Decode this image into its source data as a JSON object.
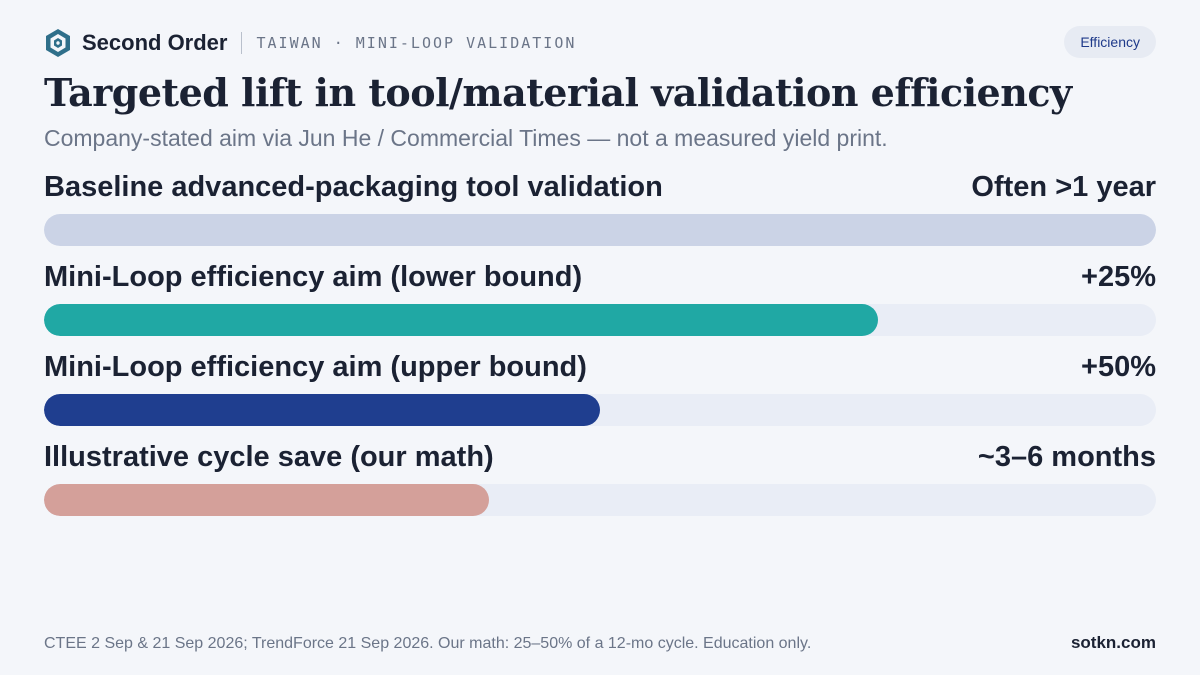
{
  "header": {
    "brand": "Second Order",
    "kicker": "TAIWAN · MINI-LOOP VALIDATION",
    "badge": "Efficiency",
    "logo_icon": "hexagon-logo-icon"
  },
  "title": "Targeted lift in tool/material validation efficiency",
  "subtitle": "Company-stated aim via Jun He / Commercial Times — not a measured yield print.",
  "chart_data": {
    "type": "bar",
    "orientation": "horizontal",
    "categories": [
      "Baseline advanced-packaging tool validation",
      "Mini-Loop efficiency aim (lower bound)",
      "Mini-Loop efficiency aim (upper bound)",
      "Illustrative cycle save (our math)"
    ],
    "value_labels": [
      "Often >1 year",
      "+25%",
      "+50%",
      "~3–6 months"
    ],
    "fill_fractions": [
      1.0,
      0.75,
      0.5,
      0.4
    ],
    "colors": [
      "#cbd3e6",
      "#20a8a4",
      "#1f3e8f",
      "#d4a09a"
    ],
    "track_color": "#e9edf6"
  },
  "footer": {
    "note": "CTEE 2 Sep & 21 Sep 2026; TrendForce 21 Sep 2026. Our math: 25–50% of a 12-mo cycle. Education only.",
    "site": "sotkn.com"
  }
}
